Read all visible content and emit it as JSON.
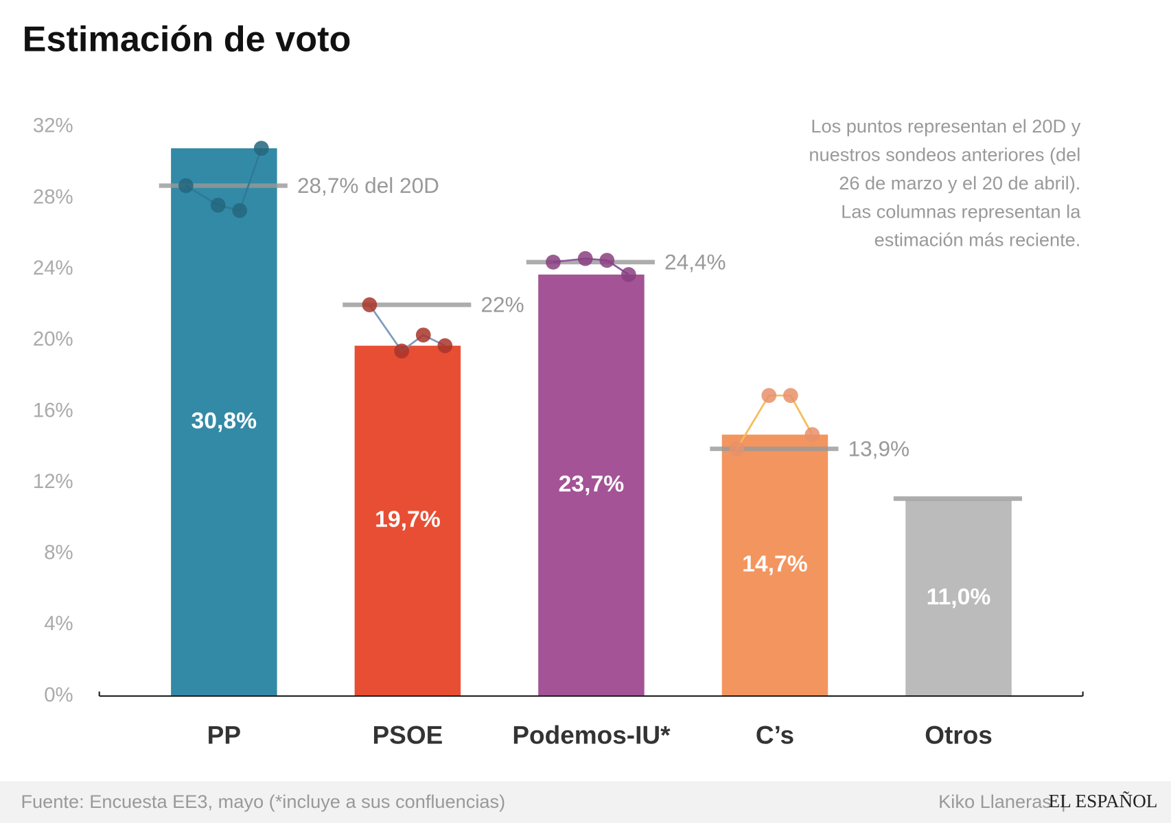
{
  "chart_data": {
    "type": "bar",
    "title": "Estimación de voto",
    "note": [
      "Los puntos representan el 20D y",
      "nuestros sondeos anteriores (del",
      "26 de marzo y el 20 de abril).",
      "Las columnas representan la",
      "estimación más reciente."
    ],
    "categories": [
      "PP",
      "PSOE",
      "Podemos-IU*",
      "C’s",
      "Otros"
    ],
    "values": [
      30.8,
      19.7,
      23.7,
      14.7,
      11.0
    ],
    "value_labels": [
      "30,8%",
      "19,7%",
      "23,7%",
      "14,7%",
      "11,0%"
    ],
    "colors": [
      "#338aa6",
      "#e84e33",
      "#a45396",
      "#f2955f",
      "#bbbbbb"
    ],
    "reference": [
      28.7,
      22,
      24.4,
      13.9,
      11.1
    ],
    "reference_labels": [
      "28,7% del 20D",
      "22%",
      "24,4%",
      "13,9%",
      null
    ],
    "dots": [
      [
        28.7,
        27.6,
        27.3,
        30.8
      ],
      [
        22,
        19.4,
        20.3,
        19.7
      ],
      [
        24.4,
        24.6,
        24.5,
        23.7
      ],
      [
        13.9,
        16.9,
        16.9,
        14.7
      ],
      null
    ],
    "dot_colors": [
      "#23667e",
      "#a8352a",
      "#8a3f80",
      "#e8906a",
      null
    ],
    "dot_line_colors": [
      "#2f7a95",
      "#7e9cbb",
      "#8d5aa0",
      "#f5bb5c",
      null
    ],
    "ylim": [
      0,
      32
    ],
    "yticks": [
      {
        "value": 0,
        "label": "0%"
      },
      {
        "value": 4,
        "label": "4%"
      },
      {
        "value": 8,
        "label": "8%"
      },
      {
        "value": 12,
        "label": "12%"
      },
      {
        "value": 16,
        "label": "16%"
      },
      {
        "value": 20,
        "label": "20%"
      },
      {
        "value": 24,
        "label": "24%"
      },
      {
        "value": 28,
        "label": "28%"
      },
      {
        "value": 32,
        "label": "32%"
      }
    ],
    "source": "Fuente: Encuesta EE3, mayo (*incluye a sus confluencias)",
    "author": "Kiko Llaneras",
    "brand": "EL ESPAÑOL"
  }
}
